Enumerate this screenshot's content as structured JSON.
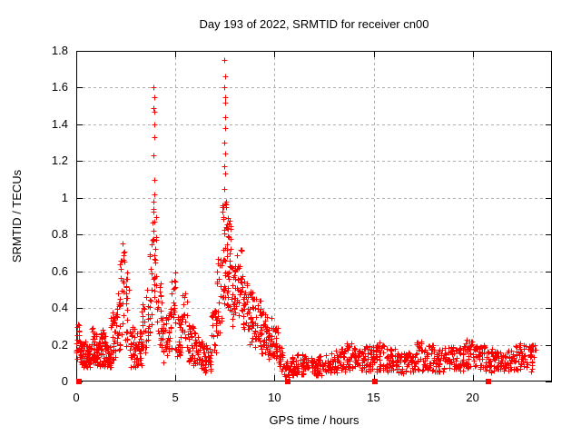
{
  "window": {
    "background": "#ffffff"
  },
  "chart_data": {
    "type": "scatter",
    "title": "Day 193 of 2022, SRMTID for receiver cn00",
    "xlabel": "GPS time / hours",
    "ylabel": "SRMTID / TECUs",
    "xlim": [
      0,
      24
    ],
    "ylim": [
      0,
      1.8
    ],
    "xticks": {
      "values": [
        0,
        5,
        10,
        15,
        20
      ],
      "labels": [
        "0",
        "5",
        "10",
        "15",
        "20"
      ]
    },
    "yticks": {
      "values": [
        0,
        0.2,
        0.4,
        0.6,
        0.8,
        1.0,
        1.2,
        1.4,
        1.6,
        1.8
      ],
      "labels": [
        "0",
        "0.2",
        "0.4",
        "0.6",
        "0.8",
        "1",
        "1.2",
        "1.4",
        "1.6",
        "1.8"
      ]
    },
    "grid": true,
    "legend": "none",
    "marker": "plus",
    "colors": {
      "points": "#ff0000",
      "grid": "#b0b0b0",
      "axis": "#000000",
      "text": "#000000"
    },
    "bands_format": "[hour_start, hour_end, min_value, max_value, point_count] envelope bins read from the plot",
    "bands": [
      [
        0.0,
        0.15,
        0.1,
        0.33,
        16
      ],
      [
        0.15,
        0.5,
        0.08,
        0.22,
        40
      ],
      [
        0.5,
        0.75,
        0.08,
        0.2,
        30
      ],
      [
        0.75,
        1.0,
        0.1,
        0.32,
        30
      ],
      [
        1.0,
        1.25,
        0.08,
        0.22,
        30
      ],
      [
        1.25,
        1.5,
        0.07,
        0.28,
        30
      ],
      [
        1.5,
        1.75,
        0.08,
        0.2,
        30
      ],
      [
        1.75,
        2.0,
        0.1,
        0.38,
        26
      ],
      [
        2.0,
        2.2,
        0.15,
        0.5,
        20
      ],
      [
        2.2,
        2.45,
        0.25,
        0.76,
        22
      ],
      [
        2.45,
        2.7,
        0.15,
        0.6,
        20
      ],
      [
        2.7,
        3.0,
        0.08,
        0.3,
        32
      ],
      [
        3.0,
        3.3,
        0.08,
        0.28,
        32
      ],
      [
        3.3,
        3.6,
        0.15,
        0.5,
        22
      ],
      [
        3.6,
        3.8,
        0.25,
        0.7,
        18
      ],
      [
        3.8,
        4.05,
        0.35,
        1.0,
        26
      ],
      [
        4.05,
        4.3,
        0.2,
        0.55,
        20
      ],
      [
        4.3,
        4.6,
        0.1,
        0.35,
        26
      ],
      [
        4.6,
        4.8,
        0.15,
        0.4,
        18
      ],
      [
        4.8,
        5.0,
        0.3,
        0.6,
        18
      ],
      [
        5.0,
        5.3,
        0.12,
        0.35,
        26
      ],
      [
        5.3,
        5.6,
        0.15,
        0.48,
        22
      ],
      [
        5.6,
        5.9,
        0.1,
        0.32,
        26
      ],
      [
        5.9,
        6.2,
        0.08,
        0.28,
        26
      ],
      [
        6.2,
        6.5,
        0.06,
        0.22,
        26
      ],
      [
        6.5,
        6.8,
        0.05,
        0.2,
        26
      ],
      [
        6.8,
        7.1,
        0.15,
        0.4,
        24
      ],
      [
        7.1,
        7.35,
        0.25,
        0.7,
        24
      ],
      [
        7.35,
        7.6,
        0.4,
        1.05,
        32
      ],
      [
        7.6,
        7.8,
        0.35,
        0.9,
        28
      ],
      [
        7.8,
        8.1,
        0.3,
        0.65,
        28
      ],
      [
        8.1,
        8.4,
        0.35,
        0.72,
        28
      ],
      [
        8.4,
        8.7,
        0.25,
        0.55,
        26
      ],
      [
        8.7,
        9.0,
        0.2,
        0.5,
        26
      ],
      [
        9.0,
        9.3,
        0.18,
        0.45,
        26
      ],
      [
        9.3,
        9.6,
        0.15,
        0.38,
        26
      ],
      [
        9.6,
        9.9,
        0.12,
        0.35,
        26
      ],
      [
        9.9,
        10.2,
        0.12,
        0.3,
        26
      ],
      [
        10.2,
        10.45,
        0.05,
        0.22,
        20
      ],
      [
        10.45,
        10.8,
        0.02,
        0.12,
        24
      ],
      [
        10.8,
        11.1,
        0.03,
        0.14,
        24
      ],
      [
        11.1,
        11.6,
        0.03,
        0.15,
        32
      ],
      [
        11.6,
        12.1,
        0.03,
        0.13,
        32
      ],
      [
        12.1,
        12.6,
        0.03,
        0.14,
        32
      ],
      [
        12.6,
        13.1,
        0.04,
        0.16,
        32
      ],
      [
        13.1,
        13.6,
        0.05,
        0.18,
        32
      ],
      [
        13.6,
        14.1,
        0.06,
        0.22,
        32
      ],
      [
        14.1,
        14.6,
        0.05,
        0.18,
        32
      ],
      [
        14.6,
        15.1,
        0.06,
        0.2,
        32
      ],
      [
        15.1,
        15.6,
        0.05,
        0.22,
        32
      ],
      [
        15.6,
        16.1,
        0.05,
        0.18,
        32
      ],
      [
        16.1,
        16.6,
        0.04,
        0.16,
        32
      ],
      [
        16.6,
        17.1,
        0.05,
        0.18,
        32
      ],
      [
        17.1,
        17.6,
        0.06,
        0.22,
        32
      ],
      [
        17.6,
        18.1,
        0.06,
        0.2,
        32
      ],
      [
        18.1,
        18.6,
        0.05,
        0.18,
        32
      ],
      [
        18.6,
        19.1,
        0.06,
        0.19,
        32
      ],
      [
        19.1,
        19.6,
        0.06,
        0.2,
        32
      ],
      [
        19.6,
        20.1,
        0.07,
        0.23,
        32
      ],
      [
        20.1,
        20.6,
        0.06,
        0.2,
        32
      ],
      [
        20.6,
        21.1,
        0.05,
        0.18,
        32
      ],
      [
        21.1,
        21.6,
        0.05,
        0.17,
        32
      ],
      [
        21.6,
        22.1,
        0.05,
        0.18,
        32
      ],
      [
        22.1,
        22.6,
        0.06,
        0.21,
        32
      ],
      [
        22.6,
        23.2,
        0.05,
        0.2,
        34
      ]
    ],
    "peaks_format": "[hour, value] individually visible high points",
    "peaks": [
      [
        3.9,
        1.6
      ],
      [
        3.92,
        1.55
      ],
      [
        3.91,
        1.49
      ],
      [
        3.93,
        1.47
      ],
      [
        3.92,
        1.4
      ],
      [
        3.94,
        1.33
      ],
      [
        3.9,
        1.23
      ],
      [
        3.93,
        1.1
      ],
      [
        3.95,
        1.02
      ],
      [
        3.91,
        0.94
      ],
      [
        3.96,
        0.87
      ],
      [
        3.89,
        0.82
      ],
      [
        7.48,
        1.75
      ],
      [
        7.5,
        1.66
      ],
      [
        7.47,
        1.6
      ],
      [
        7.5,
        1.55
      ],
      [
        7.52,
        1.52
      ],
      [
        7.49,
        1.44
      ],
      [
        7.51,
        1.38
      ],
      [
        7.46,
        1.3
      ],
      [
        7.53,
        1.24
      ],
      [
        7.48,
        1.17
      ],
      [
        7.5,
        1.13
      ],
      [
        7.47,
        1.05
      ],
      [
        7.55,
        0.98
      ],
      [
        7.44,
        0.95
      ]
    ],
    "zeros_format": "hours where a solid red square sits at value 0",
    "zeros": [
      0.14,
      10.65,
      15.05,
      20.78
    ]
  }
}
